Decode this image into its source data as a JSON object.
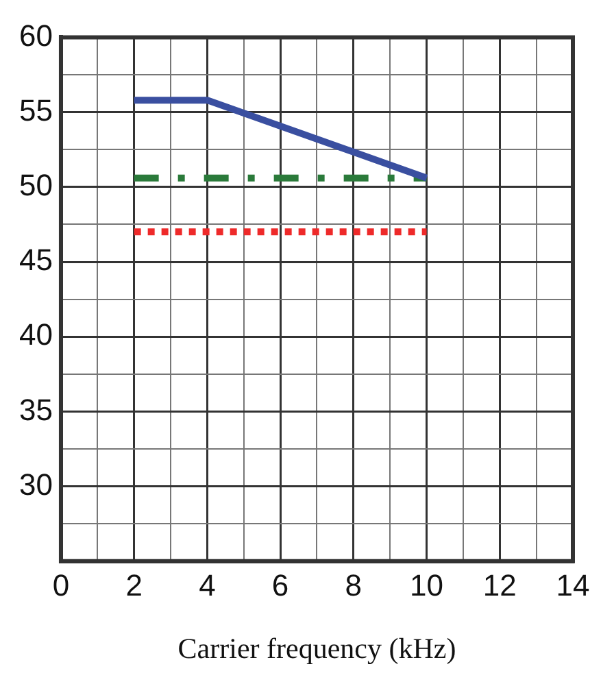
{
  "chart_data": {
    "type": "line",
    "xlabel": "Carrier frequency (kHz)",
    "xlim": [
      0,
      14
    ],
    "ylim": [
      25,
      60
    ],
    "xticks": [
      0,
      {
        "value": 1,
        "label": null
      },
      2,
      {
        "value": 3,
        "label": null
      },
      4,
      {
        "value": 5,
        "label": null
      },
      6,
      {
        "value": 7,
        "label": null
      },
      8,
      {
        "value": 9,
        "label": null
      },
      10,
      {
        "value": 11,
        "label": null
      },
      12,
      {
        "value": 13,
        "label": null
      },
      14
    ],
    "yticks": [
      {
        "value": 25,
        "label": null
      },
      {
        "value": 27.5,
        "label": null
      },
      30,
      {
        "value": 32.5,
        "label": null
      },
      35,
      {
        "value": 37.5,
        "label": null
      },
      40,
      {
        "value": 42.5,
        "label": null
      },
      45,
      {
        "value": 47.5,
        "label": null
      },
      50,
      {
        "value": 52.5,
        "label": null
      },
      55,
      {
        "value": 57.5,
        "label": null
      },
      60
    ],
    "grid": true,
    "legend": false,
    "marker": "none",
    "series": [
      {
        "color": "#3a4fa0",
        "x": [
          2,
          4,
          10
        ],
        "values": [
          55.8,
          55.8,
          50.6
        ],
        "line_style": "solid"
      },
      {
        "color": "#2a7a3a",
        "x": [
          2,
          10
        ],
        "values": [
          50.6,
          50.6
        ],
        "line_style": "dashed"
      },
      {
        "color": "#ee2a2a",
        "x": [
          2,
          10
        ],
        "values": [
          47,
          47
        ],
        "line_style": "dotted"
      }
    ]
  }
}
